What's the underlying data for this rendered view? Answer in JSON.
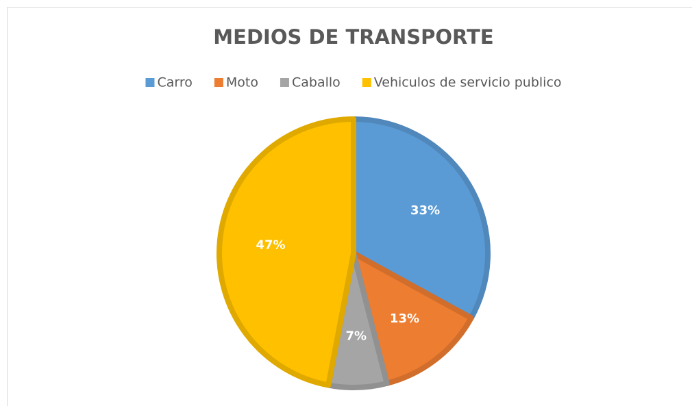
{
  "chart_data": {
    "type": "pie",
    "title": "MEDIOS DE TRANSPORTE",
    "categories": [
      "Carro",
      "Moto",
      "Caballo",
      "Vehiculos de servicio publico"
    ],
    "values": [
      33,
      13,
      7,
      47
    ],
    "value_labels": [
      "33%",
      "13%",
      "7%",
      "47%"
    ],
    "colors": [
      "#5b9bd5",
      "#ed7d31",
      "#a5a5a5",
      "#ffc000"
    ],
    "legend": "top"
  }
}
